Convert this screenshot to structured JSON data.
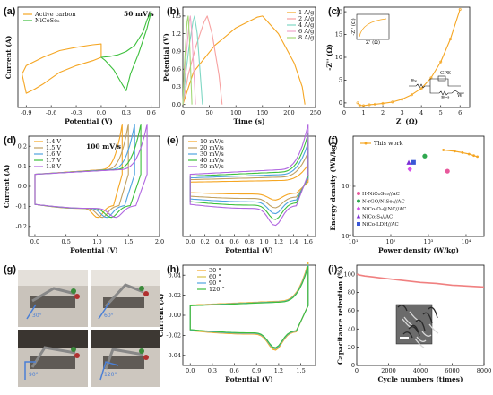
{
  "panel_labels": [
    "(a)",
    "(b)",
    "(c)",
    "(d)",
    "(e)",
    "(f)",
    "(g)",
    "(h)",
    "(i)"
  ],
  "chart_data": [
    {
      "id": "a",
      "type": "line",
      "annotation": "50 mV/s",
      "xlabel": "Potential (V)",
      "ylabel": "Current (A)",
      "xlim": [
        -1.0,
        0.7
      ],
      "ylim": [
        -0.06,
        0.06
      ],
      "xticks": [
        "-0.9",
        "-0.6",
        "-0.3",
        "0.0",
        "0.3",
        "0.6"
      ],
      "yticks": [],
      "colors": [
        "#f5a623",
        "#3cbf3c"
      ],
      "series": [
        {
          "name": "Active carbon",
          "closed": true,
          "x": [
            -0.95,
            -0.9,
            -0.7,
            -0.5,
            -0.3,
            -0.1,
            0.0,
            0.0,
            -0.1,
            -0.3,
            -0.5,
            -0.6,
            -0.7,
            -0.8,
            -0.9,
            -0.95
          ],
          "y": [
            -0.02,
            -0.01,
            0.0,
            0.008,
            0.012,
            0.015,
            0.016,
            0.0,
            -0.004,
            -0.01,
            -0.018,
            -0.025,
            -0.032,
            -0.038,
            -0.043,
            -0.02
          ]
        },
        {
          "name": "NiCoSe₂",
          "closed": true,
          "x": [
            0.0,
            0.1,
            0.2,
            0.3,
            0.4,
            0.5,
            0.55,
            0.6,
            0.55,
            0.45,
            0.35,
            0.3,
            0.25,
            0.15,
            0.05,
            0.0
          ],
          "y": [
            0.0,
            0.001,
            0.003,
            0.007,
            0.014,
            0.03,
            0.045,
            0.055,
            0.035,
            0.005,
            -0.02,
            -0.04,
            -0.032,
            -0.015,
            -0.004,
            0.0
          ]
        }
      ]
    },
    {
      "id": "b",
      "type": "line",
      "xlabel": "Time (s)",
      "ylabel": "Potential (V)",
      "xlim": [
        0,
        250
      ],
      "ylim": [
        -0.05,
        1.65
      ],
      "xticks": [
        "0",
        "50",
        "100",
        "150",
        "200",
        "250"
      ],
      "yticks": [
        "0.0",
        "0.3",
        "0.6",
        "0.9",
        "1.2",
        "1.5"
      ],
      "colors": [
        "#f5a623",
        "#f7a1a1",
        "#7fd7c4",
        "#f0a7c9",
        "#a3d977"
      ],
      "series": [
        {
          "name": "1 A/g",
          "x": [
            0,
            20,
            60,
            100,
            140,
            150,
            180,
            210,
            225,
            230
          ],
          "y": [
            0,
            0.55,
            1.0,
            1.3,
            1.48,
            1.5,
            1.2,
            0.7,
            0.3,
            0
          ]
        },
        {
          "name": "2 A/g",
          "x": [
            0,
            10,
            25,
            40,
            46,
            55,
            68,
            74
          ],
          "y": [
            0,
            0.5,
            1.0,
            1.4,
            1.5,
            1.2,
            0.5,
            0
          ]
        },
        {
          "name": "4 A/g",
          "x": [
            0,
            5,
            12,
            19,
            22,
            27,
            33,
            37
          ],
          "y": [
            0,
            0.5,
            1.0,
            1.4,
            1.5,
            1.2,
            0.5,
            0
          ]
        },
        {
          "name": "6 A/g",
          "x": [
            0,
            3,
            8,
            12,
            14,
            17,
            21,
            24
          ],
          "y": [
            0,
            0.5,
            1.0,
            1.4,
            1.5,
            1.2,
            0.5,
            0
          ]
        },
        {
          "name": "8 A/g",
          "x": [
            0,
            2,
            5,
            8,
            10,
            12,
            15,
            17
          ],
          "y": [
            0,
            0.5,
            1.0,
            1.4,
            1.5,
            1.2,
            0.5,
            0
          ]
        }
      ]
    },
    {
      "id": "c",
      "type": "line",
      "xlabel": "Z' (Ω)",
      "ylabel": "-Z'' (Ω)",
      "xlim": [
        0,
        6.5
      ],
      "ylim": [
        -1,
        21
      ],
      "xticks": [
        "0",
        "1",
        "2",
        "3",
        "4",
        "5",
        "6"
      ],
      "yticks": [
        "0",
        "5",
        "10",
        "15",
        "20"
      ],
      "colors": [
        "#f5a623"
      ],
      "series": [
        {
          "name": "",
          "x": [
            0.7,
            0.8,
            1.0,
            1.3,
            1.6,
            2.0,
            2.5,
            3.0,
            3.5,
            4.0,
            4.5,
            5.0,
            5.5,
            6.0
          ],
          "y": [
            0.0,
            -0.5,
            -0.6,
            -0.4,
            -0.3,
            -0.1,
            0.2,
            0.8,
            1.8,
            3.2,
            5.5,
            9.0,
            14.0,
            20.5
          ]
        }
      ],
      "inset_labels": {
        "ylabel": "-Z'' (Ω)",
        "xlabel": "Z' (Ω)"
      },
      "circuit_labels": [
        "Rs",
        "CPE",
        "Rct",
        "W"
      ]
    },
    {
      "id": "d",
      "type": "line",
      "annotation": "100 mV/s",
      "xlabel": "Potential (V)",
      "ylabel": "Current (A)",
      "xlim": [
        -0.1,
        2.0
      ],
      "ylim": [
        -0.25,
        0.25
      ],
      "xticks": [
        "0.0",
        "0.5",
        "1.0",
        "1.5",
        "2.0"
      ],
      "yticks": [
        "-0.2",
        "-0.1",
        "0.0",
        "0.1",
        "0.2"
      ],
      "colors": [
        "#f5a623",
        "#c0a060",
        "#4fa3e0",
        "#3cbf3c",
        "#b066e0"
      ],
      "series": [
        {
          "name": "1.4 V",
          "vmax": 1.4
        },
        {
          "name": "1.5 V",
          "vmax": 1.5
        },
        {
          "name": "1.6 V",
          "vmax": 1.6
        },
        {
          "name": "1.7 V",
          "vmax": 1.7
        },
        {
          "name": "1.8 V",
          "vmax": 1.8
        }
      ]
    },
    {
      "id": "e",
      "type": "line",
      "xlabel": "Potential (V)",
      "ylabel": "",
      "xlim": [
        -0.1,
        1.7
      ],
      "ylim": [
        -0.2,
        0.2
      ],
      "xticks": [
        "0.0",
        "0.2",
        "0.4",
        "0.6",
        "0.8",
        "1.0",
        "1.2",
        "1.4",
        "1.6"
      ],
      "yticks": [],
      "colors": [
        "#f5a623",
        "#c0a060",
        "#4fa3e0",
        "#3cbf3c",
        "#b066e0"
      ],
      "series": [
        {
          "name": "10 mV/s",
          "scale": 0.35
        },
        {
          "name": "20 mV/s",
          "scale": 0.55
        },
        {
          "name": "30 mV/s",
          "scale": 0.7
        },
        {
          "name": "40 mV/s",
          "scale": 0.85
        },
        {
          "name": "50 mV/s",
          "scale": 1.0
        }
      ]
    },
    {
      "id": "f",
      "type": "scatter",
      "xlabel": "Power density (W/kg)",
      "ylabel": "Energy density (Wh/kg)",
      "xscale": "log",
      "yscale": "log",
      "xlim": [
        10,
        30000
      ],
      "ylim": [
        1,
        100
      ],
      "xtick_values": [
        10,
        100,
        1000,
        10000
      ],
      "xticks": [
        "10¹",
        "10²",
        "10³",
        "10⁴"
      ],
      "ytick_values": [
        1,
        10
      ],
      "yticks": [
        "10⁰",
        "10¹"
      ],
      "this_work": {
        "name": "This work",
        "color": "#f5a623",
        "x": [
          2500,
          5000,
          8000,
          12000,
          16000,
          20000
        ],
        "y": [
          53,
          50,
          47,
          44,
          41,
          39
        ]
      },
      "points": [
        {
          "name": "H-NiCoSe₂//AC",
          "color": "#e8589c",
          "marker": "circle",
          "x": 3200,
          "y": 20
        },
        {
          "name": "N-rGO/NiSe₂//AC",
          "color": "#2fa84f",
          "marker": "circle",
          "x": 800,
          "y": 40
        },
        {
          "name": "NiCo₂O₄@NC//AC",
          "color": "#d54ee8",
          "marker": "diamond",
          "x": 320,
          "y": 22
        },
        {
          "name": "NiCo₂S₄//AC",
          "color": "#7b2fd6",
          "marker": "triangle",
          "x": 300,
          "y": 30
        },
        {
          "name": "NiCo-LDH//AC",
          "color": "#3a57d6",
          "marker": "square",
          "x": 400,
          "y": 30
        }
      ]
    },
    {
      "id": "h",
      "type": "line",
      "xlabel": "Potential (V)",
      "ylabel": "Current (A)",
      "xlim": [
        -0.1,
        1.7
      ],
      "ylim": [
        -0.05,
        0.05
      ],
      "xticks": [
        "0.0",
        "0.3",
        "0.6",
        "0.9",
        "1.2",
        "1.5"
      ],
      "yticks": [
        "-0.04",
        "-0.02",
        "0.00",
        "0.02",
        "0.04"
      ],
      "colors": [
        "#f5a623",
        "#d9c24a",
        "#4fa3e0",
        "#3cbf3c"
      ],
      "series": [
        {
          "name": "30 °"
        },
        {
          "name": "60 °"
        },
        {
          "name": "90 °"
        },
        {
          "name": "120 °"
        }
      ]
    },
    {
      "id": "i",
      "type": "line",
      "xlabel": "Cycle numbers (times)",
      "ylabel": "Capacitance retention (%)",
      "xlim": [
        0,
        8000
      ],
      "ylim": [
        0,
        110
      ],
      "xticks": [
        "0",
        "2000",
        "4000",
        "6000",
        "8000"
      ],
      "yticks": [
        "0",
        "20",
        "40",
        "60",
        "80",
        "100"
      ],
      "colors": [
        "#f08080"
      ],
      "series": [
        {
          "name": "",
          "x": [
            0,
            200,
            500,
            1000,
            1500,
            2000,
            3000,
            4000,
            5000,
            6000,
            7000,
            8000
          ],
          "y": [
            100,
            99,
            98,
            97,
            96,
            95,
            93,
            91,
            90,
            88,
            87,
            86
          ]
        }
      ]
    }
  ],
  "photo_labels": [
    "30°",
    "60°",
    "90°",
    "120°"
  ]
}
